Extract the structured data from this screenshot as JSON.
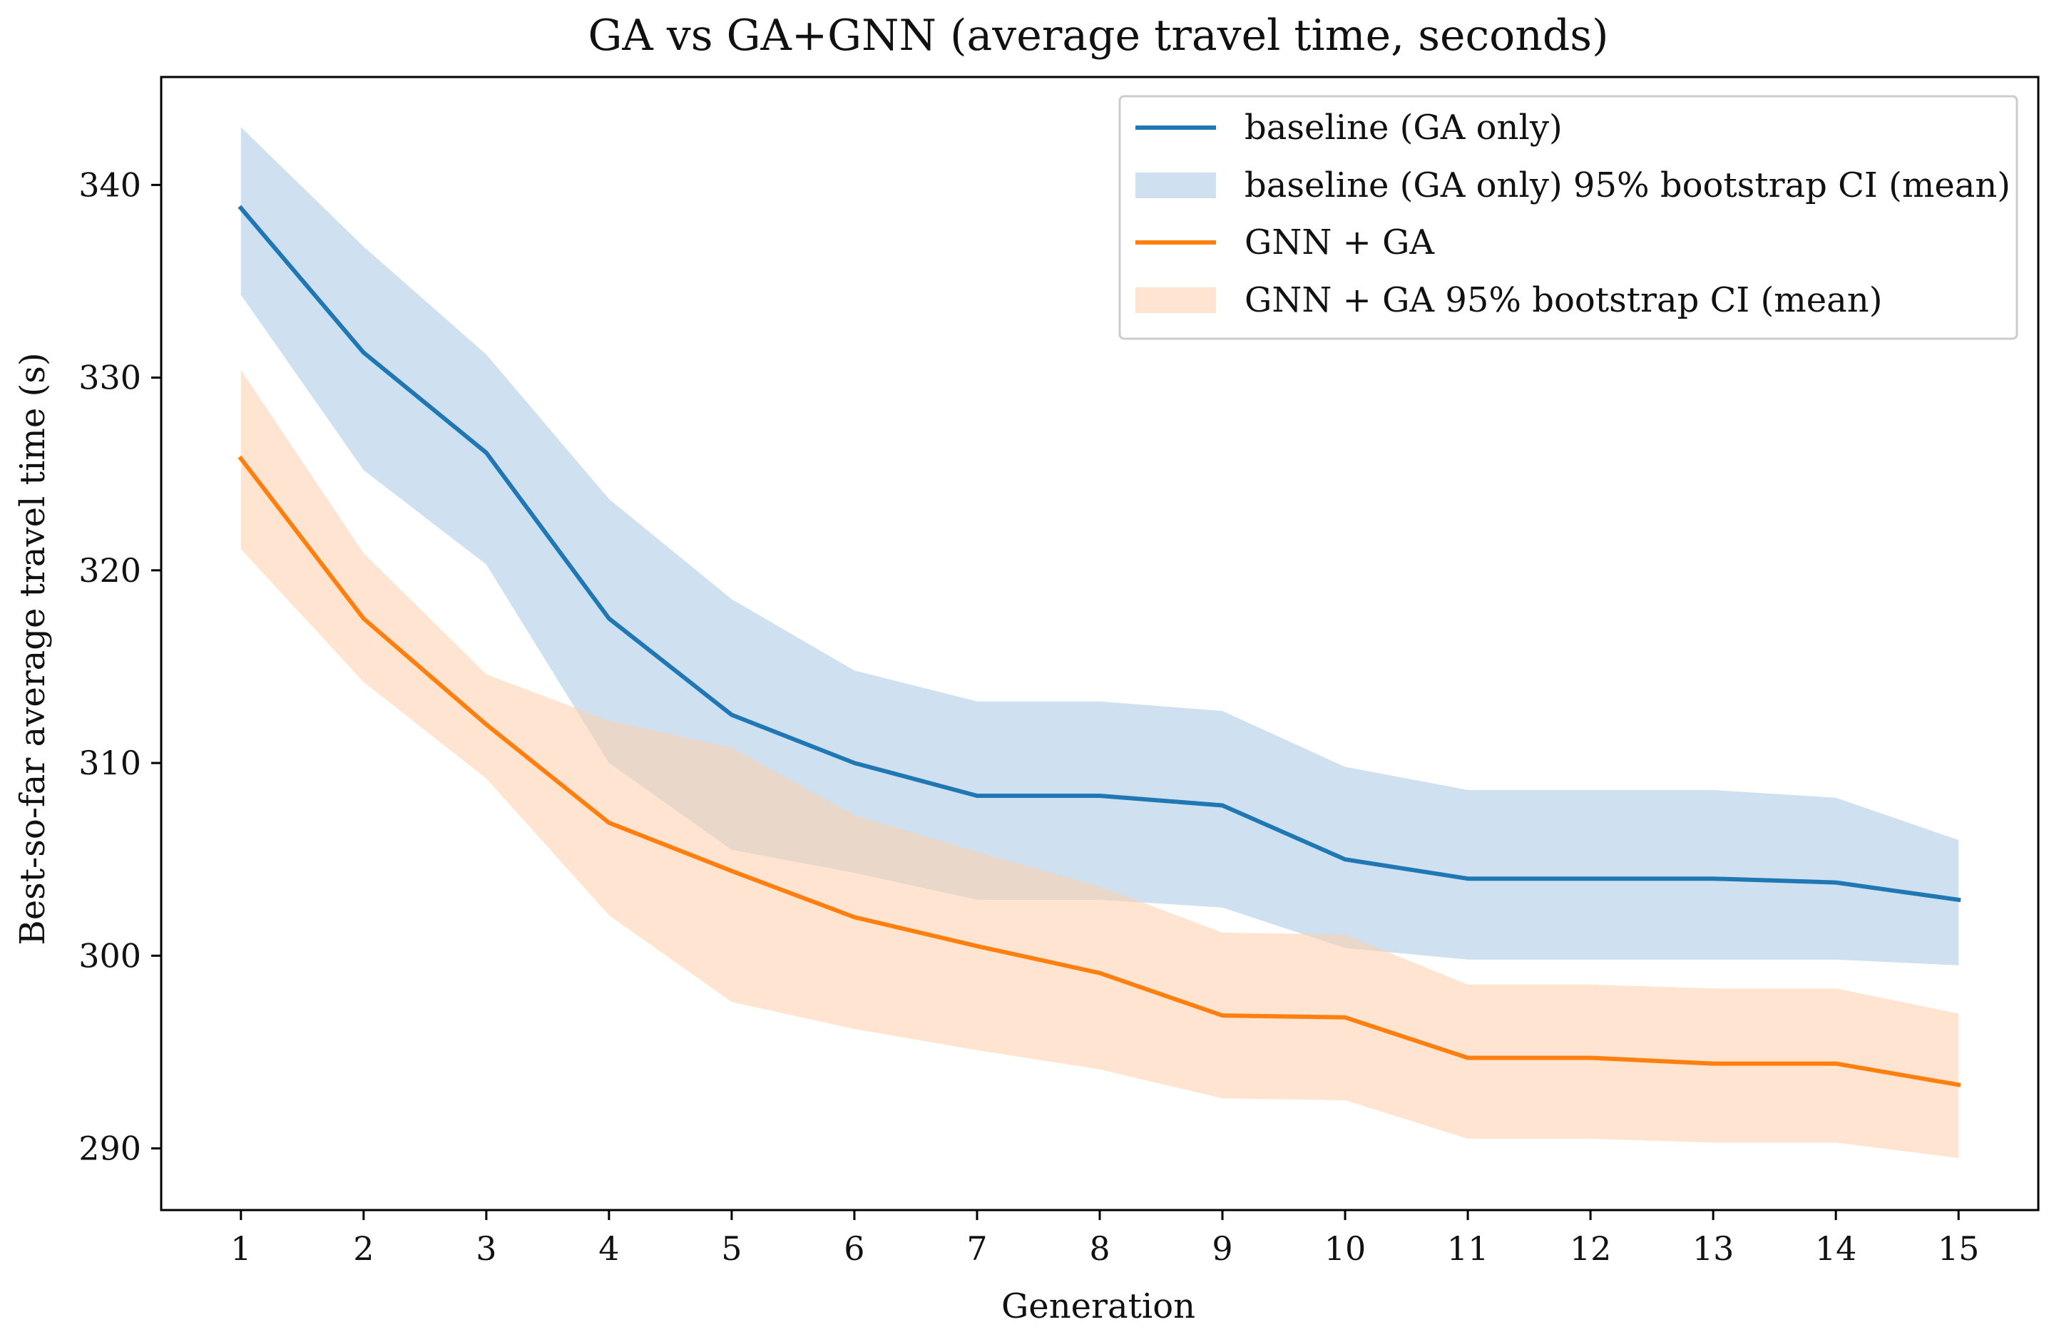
{
  "chart_data": {
    "type": "line",
    "title": "GA vs GA+GNN (average travel time, seconds)",
    "xlabel": "Generation",
    "ylabel": "Best-so-far average travel time (s)",
    "x": [
      1,
      2,
      3,
      4,
      5,
      6,
      7,
      8,
      9,
      10,
      11,
      12,
      13,
      14,
      15
    ],
    "xlim": [
      0.35,
      15.65
    ],
    "ylim": [
      286.8,
      345.6
    ],
    "yticks": [
      290,
      300,
      310,
      320,
      330,
      340
    ],
    "grid": false,
    "legend_position": "top-right",
    "series": [
      {
        "name": "baseline (GA only)",
        "ci_name": "baseline (GA only) 95% bootstrap CI (mean)",
        "color": "#1f77b4",
        "band_color": "#a8c9e4",
        "values": [
          338.8,
          331.3,
          326.1,
          317.5,
          312.5,
          310.0,
          308.3,
          308.3,
          307.8,
          305.0,
          304.0,
          304.0,
          304.0,
          303.8,
          302.9
        ],
        "ci_low": [
          334.3,
          325.2,
          320.3,
          310.0,
          305.5,
          304.3,
          302.9,
          302.9,
          302.5,
          300.4,
          299.8,
          299.8,
          299.8,
          299.8,
          299.5
        ],
        "ci_high": [
          343.0,
          336.8,
          331.2,
          323.7,
          318.5,
          314.8,
          313.2,
          313.2,
          312.7,
          309.8,
          308.6,
          308.6,
          308.6,
          308.2,
          306.0
        ]
      },
      {
        "name": "GNN + GA",
        "ci_name": "GNN + GA 95% bootstrap CI (mean)",
        "color": "#ff7f0e",
        "band_color": "#ffd0ab",
        "values": [
          325.8,
          317.5,
          312.0,
          306.9,
          304.4,
          302.0,
          300.5,
          299.1,
          296.9,
          296.8,
          294.7,
          294.7,
          294.4,
          294.4,
          293.3
        ],
        "ci_low": [
          321.1,
          314.2,
          309.2,
          302.1,
          297.6,
          296.2,
          295.1,
          294.1,
          292.6,
          292.5,
          290.5,
          290.5,
          290.3,
          290.3,
          289.5
        ],
        "ci_high": [
          330.4,
          320.9,
          314.6,
          312.2,
          310.8,
          307.3,
          305.4,
          303.6,
          301.2,
          301.1,
          298.5,
          298.5,
          298.3,
          298.3,
          297.0
        ]
      }
    ]
  }
}
